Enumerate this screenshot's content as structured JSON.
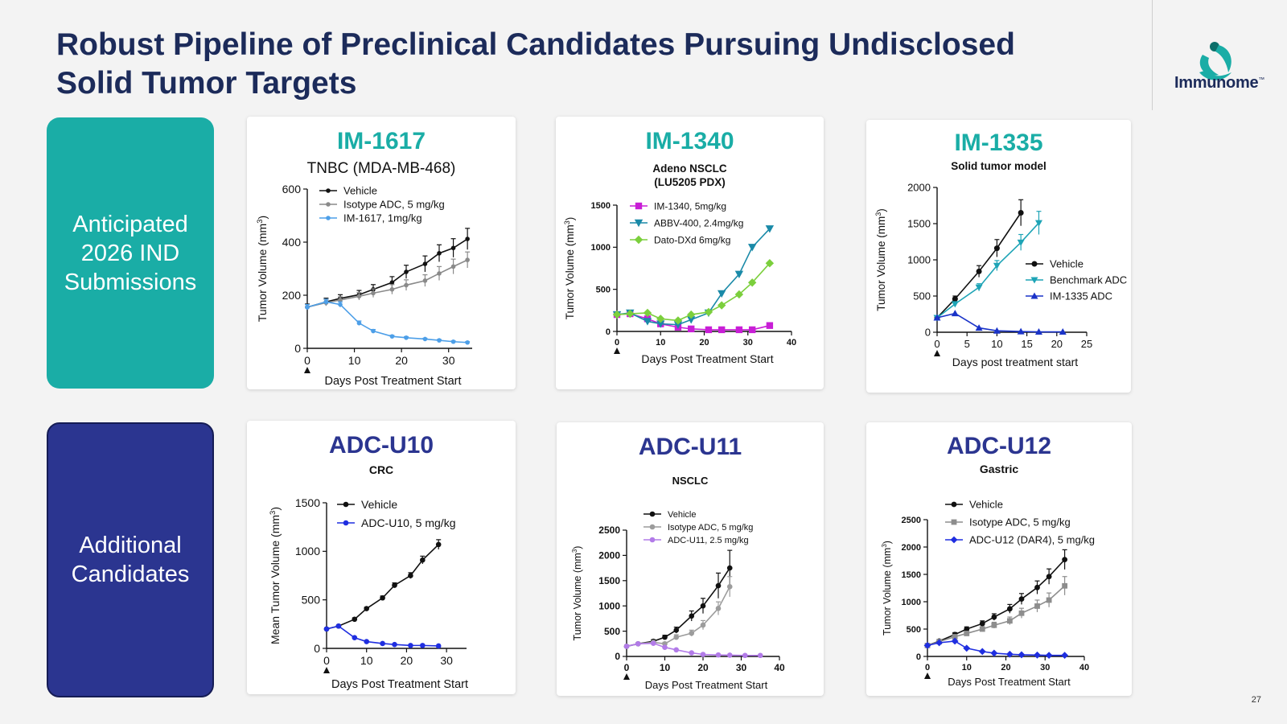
{
  "slide": {
    "title_lines": [
      "Robust Pipeline of Preclinical Candidates Pursuing Undisclosed",
      "Solid Tumor Targets"
    ],
    "logo_text": "Immunome",
    "logo_tm": "™",
    "page_number": "27",
    "colors": {
      "title": "#1c2b5a",
      "teal": "#1aada6",
      "navy": "#2b3590"
    }
  },
  "sidebar": {
    "anticipated": {
      "lines": [
        "Anticipated",
        "2026 IND",
        "Submissions"
      ],
      "color": "#1aada6"
    },
    "additional": {
      "lines": [
        "Additional",
        "Candidates"
      ],
      "color": "#2b3590"
    }
  },
  "chart_data": [
    {
      "id": "im1617",
      "type": "line",
      "heading": "IM-1617",
      "subtitle": [
        "TNBC (MDA-MB-468)"
      ],
      "xlabel": "Days Post Treatment Start",
      "ylabel": "Tumor Volume (mm3)",
      "xlim": [
        0,
        35
      ],
      "ylim": [
        0,
        600
      ],
      "xticks": [
        0,
        10,
        20,
        30
      ],
      "yticks": [
        0,
        200,
        400,
        600
      ],
      "treatment_marker_day": 0,
      "series": [
        {
          "name": "Vehicle",
          "color": "#111111",
          "marker": "circle",
          "x": [
            0,
            4,
            7,
            11,
            14,
            18,
            21,
            25,
            28,
            31,
            34
          ],
          "y": [
            155,
            175,
            188,
            202,
            222,
            248,
            288,
            318,
            358,
            378,
            412
          ],
          "err": [
            12,
            14,
            14,
            16,
            18,
            22,
            25,
            30,
            32,
            35,
            40
          ]
        },
        {
          "name": "Isotype ADC, 5 mg/kg",
          "color": "#8a8a8a",
          "marker": "circle",
          "x": [
            0,
            4,
            7,
            11,
            14,
            18,
            21,
            25,
            28,
            31,
            34
          ],
          "y": [
            155,
            172,
            182,
            196,
            208,
            222,
            238,
            255,
            282,
            308,
            333
          ],
          "err": [
            10,
            12,
            12,
            14,
            16,
            18,
            20,
            22,
            26,
            28,
            30
          ]
        },
        {
          "name": "IM-1617, 1mg/kg",
          "color": "#4d9fe8",
          "marker": "circle",
          "x": [
            0,
            4,
            7,
            11,
            14,
            18,
            21,
            25,
            28,
            31,
            34
          ],
          "y": [
            155,
            175,
            165,
            95,
            65,
            45,
            40,
            35,
            30,
            25,
            22
          ],
          "err": [
            10,
            10,
            10,
            8,
            6,
            4,
            4,
            3,
            3,
            3,
            3
          ]
        }
      ]
    },
    {
      "id": "im1340",
      "type": "line",
      "heading": "IM-1340",
      "subtitle": [
        "Adeno NSCLC",
        "(LU5205 PDX)"
      ],
      "xlabel": "Days Post Treatment Start",
      "ylabel": "Tumor Volume (mm3)",
      "xlim": [
        0,
        40
      ],
      "ylim": [
        0,
        1500
      ],
      "xticks": [
        0,
        10,
        20,
        30,
        40
      ],
      "yticks": [
        0,
        500,
        1000,
        1500
      ],
      "treatment_marker_day": 0,
      "series": [
        {
          "name": "IM-1340, 5mg/kg",
          "color": "#c81ed6",
          "marker": "square",
          "x": [
            0,
            3,
            7,
            10,
            14,
            17,
            21,
            24,
            28,
            31,
            35
          ],
          "y": [
            200,
            210,
            150,
            90,
            50,
            30,
            20,
            20,
            20,
            20,
            70
          ]
        },
        {
          "name": "ABBV-400, 2.4mg/kg",
          "color": "#1a8aa8",
          "marker": "triangle-down",
          "x": [
            0,
            3,
            7,
            10,
            14,
            17,
            21,
            24,
            28,
            31,
            35
          ],
          "y": [
            200,
            220,
            120,
            90,
            80,
            140,
            220,
            450,
            680,
            1000,
            1220
          ]
        },
        {
          "name": "Dato-DXd 6mg/kg",
          "color": "#7bcf3c",
          "marker": "diamond",
          "x": [
            0,
            3,
            7,
            10,
            14,
            17,
            21,
            24,
            28,
            31,
            35
          ],
          "y": [
            200,
            210,
            220,
            150,
            130,
            200,
            230,
            310,
            440,
            580,
            810
          ]
        }
      ]
    },
    {
      "id": "im1335",
      "type": "line",
      "heading": "IM-1335",
      "subtitle": [
        "Solid tumor model"
      ],
      "xlabel": "Days post treatment start",
      "ylabel": "Tumor Volume (mm3)",
      "xlim": [
        0,
        25
      ],
      "ylim": [
        0,
        2000
      ],
      "xticks": [
        0,
        5,
        10,
        15,
        20,
        25
      ],
      "yticks": [
        0,
        500,
        1000,
        1500,
        2000
      ],
      "treatment_marker_day": 0,
      "series": [
        {
          "name": "Vehicle",
          "color": "#111111",
          "marker": "circle",
          "x": [
            0,
            3,
            7,
            10,
            14
          ],
          "y": [
            200,
            460,
            840,
            1160,
            1650
          ],
          "err": [
            20,
            40,
            80,
            120,
            180
          ]
        },
        {
          "name": "Benchmark ADC",
          "color": "#1ea4b6",
          "marker": "triangle-down",
          "x": [
            0,
            3,
            7,
            10,
            14,
            17
          ],
          "y": [
            200,
            390,
            620,
            920,
            1240,
            1510
          ],
          "err": [
            20,
            30,
            50,
            70,
            110,
            160
          ]
        },
        {
          "name": "IM-1335 ADC",
          "color": "#1a33c8",
          "marker": "triangle-up",
          "x": [
            0,
            3,
            7,
            10,
            14,
            17,
            21
          ],
          "y": [
            200,
            260,
            60,
            20,
            10,
            5,
            5
          ]
        }
      ]
    },
    {
      "id": "u10",
      "type": "line",
      "heading": "ADC-U10",
      "subtitle": [
        "CRC"
      ],
      "xlabel": "Days Post Treatment Start",
      "ylabel": "Mean Tumor Volume (mm3)",
      "xlim": [
        0,
        35
      ],
      "ylim": [
        0,
        1500
      ],
      "xticks": [
        0,
        10,
        20,
        30
      ],
      "yticks": [
        0,
        500,
        1000,
        1500
      ],
      "treatment_marker_day": 0,
      "series": [
        {
          "name": "Vehicle",
          "color": "#111111",
          "marker": "circle",
          "x": [
            0,
            3,
            7,
            10,
            14,
            17,
            21,
            24,
            28
          ],
          "y": [
            200,
            230,
            300,
            410,
            520,
            650,
            750,
            910,
            1070
          ],
          "err": [
            10,
            10,
            15,
            15,
            20,
            25,
            30,
            40,
            50
          ]
        },
        {
          "name": "ADC-U10, 5 mg/kg",
          "color": "#1f2ee0",
          "marker": "circle",
          "x": [
            0,
            3,
            7,
            10,
            14,
            17,
            21,
            24,
            28
          ],
          "y": [
            200,
            230,
            110,
            70,
            50,
            40,
            30,
            30,
            25
          ]
        }
      ]
    },
    {
      "id": "u11",
      "type": "line",
      "heading": "ADC-U11",
      "subtitle": [
        "NSCLC"
      ],
      "xlabel": "Days Post Treatment Start",
      "ylabel": "Tumor Volume (mm3)",
      "xlim": [
        0,
        40
      ],
      "ylim": [
        0,
        2500
      ],
      "xticks": [
        0,
        10,
        20,
        30,
        40
      ],
      "yticks": [
        0,
        500,
        1000,
        1500,
        2000,
        2500
      ],
      "treatment_marker_day": 0,
      "series": [
        {
          "name": "Vehicle",
          "color": "#111111",
          "marker": "circle",
          "x": [
            0,
            3,
            7,
            10,
            13,
            17,
            20,
            24,
            27
          ],
          "y": [
            200,
            250,
            300,
            380,
            520,
            800,
            1000,
            1400,
            1750
          ],
          "err": [
            20,
            20,
            30,
            40,
            60,
            100,
            150,
            250,
            350
          ]
        },
        {
          "name": "Isotype ADC, 5 mg/kg",
          "color": "#9c9c9c",
          "marker": "circle",
          "x": [
            0,
            3,
            7,
            10,
            13,
            17,
            20,
            24,
            27
          ],
          "y": [
            200,
            250,
            280,
            250,
            380,
            460,
            620,
            950,
            1380
          ],
          "err": [
            20,
            20,
            20,
            30,
            50,
            60,
            90,
            130,
            200
          ]
        },
        {
          "name": "ADC-U11, 2.5 mg/kg",
          "color": "#b27be8",
          "marker": "circle",
          "x": [
            0,
            3,
            7,
            10,
            13,
            17,
            20,
            24,
            27,
            31,
            35
          ],
          "y": [
            200,
            250,
            260,
            180,
            130,
            70,
            40,
            30,
            25,
            20,
            20
          ]
        }
      ]
    },
    {
      "id": "u12",
      "type": "line",
      "heading": "ADC-U12",
      "subtitle": [
        "Gastric"
      ],
      "xlabel": "Days Post Treatment Start",
      "ylabel": "Tumor Volume (mm3)",
      "xlim": [
        0,
        40
      ],
      "ylim": [
        0,
        2500
      ],
      "xticks": [
        0,
        10,
        20,
        30,
        40
      ],
      "yticks": [
        0,
        500,
        1000,
        1500,
        2000,
        2500
      ],
      "treatment_marker_day": 0,
      "series": [
        {
          "name": "Vehicle",
          "color": "#111111",
          "marker": "circle",
          "x": [
            0,
            3,
            7,
            10,
            14,
            17,
            21,
            24,
            28,
            31,
            35
          ],
          "y": [
            200,
            280,
            400,
            500,
            600,
            720,
            870,
            1050,
            1260,
            1460,
            1770
          ],
          "err": [
            20,
            25,
            35,
            40,
            50,
            60,
            80,
            100,
            120,
            140,
            180
          ]
        },
        {
          "name": "Isotype ADC, 5 mg/kg",
          "color": "#8d8d8d",
          "marker": "square",
          "x": [
            0,
            3,
            7,
            10,
            14,
            17,
            21,
            24,
            28,
            31,
            35
          ],
          "y": [
            200,
            270,
            360,
            420,
            500,
            570,
            650,
            790,
            920,
            1030,
            1290
          ],
          "err": [
            20,
            25,
            30,
            35,
            45,
            55,
            70,
            90,
            110,
            130,
            170
          ]
        },
        {
          "name": "ADC-U12 (DAR4), 5 mg/kg",
          "color": "#1f2ee0",
          "marker": "diamond",
          "x": [
            0,
            3,
            7,
            10,
            14,
            17,
            21,
            24,
            28,
            31,
            35
          ],
          "y": [
            200,
            250,
            280,
            150,
            90,
            60,
            40,
            30,
            25,
            20,
            20
          ]
        }
      ]
    }
  ]
}
